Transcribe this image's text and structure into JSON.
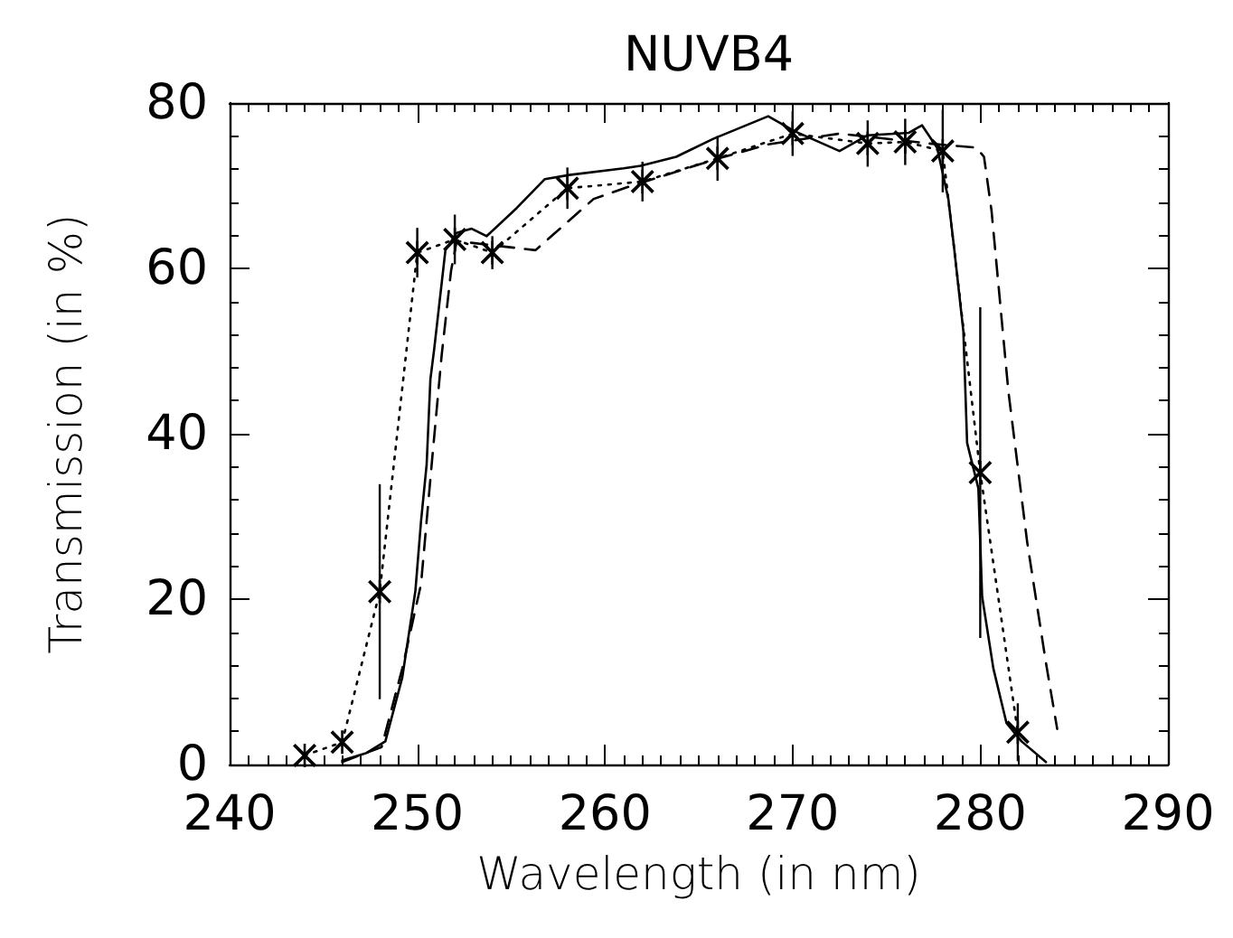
{
  "chart_data": {
    "type": "line",
    "title": "NUVB4",
    "xlabel": "Wavelength (in nm)",
    "ylabel": "Transmission (in %)",
    "xlim": [
      240,
      290
    ],
    "xticks": [
      240,
      250,
      260,
      270,
      280,
      290
    ],
    "ylim": [
      0,
      80
    ],
    "yticks": [
      0,
      20,
      40,
      60,
      80
    ],
    "grid": false,
    "series": [
      {
        "color": "#000000",
        "line_style": "solid",
        "marker": "none",
        "x": [
          246,
          247.3,
          248.3,
          249.2,
          249.9,
          250.2,
          250.5,
          250.7,
          250.9,
          251.5,
          252.1,
          252.9,
          253.7,
          255.3,
          256.8,
          258.1,
          261,
          261.9,
          263.8,
          265.8,
          268.7,
          270.1,
          272.5,
          274,
          276.2,
          276.9,
          277.7,
          278.3,
          278.6,
          279.1,
          279.3,
          279.9,
          280.1,
          280.7,
          281.4,
          282.2,
          283.5
        ],
        "values": [
          0.5,
          1.4,
          2.8,
          10.5,
          21,
          29.4,
          36.3,
          46.6,
          50.2,
          62.2,
          64.3,
          64.8,
          63.9,
          67.3,
          70.8,
          71.3,
          72.1,
          72.4,
          73.5,
          75.7,
          78.4,
          76.6,
          74.2,
          76.1,
          76.4,
          77.3,
          74.6,
          68.4,
          62.6,
          52.4,
          38.9,
          33.4,
          20.3,
          11.6,
          5,
          2.8,
          0.3
        ]
      },
      {
        "color": "#000000",
        "line_style": "dashed",
        "marker": "none",
        "x": [
          246,
          248.1,
          249.2,
          250.2,
          250.8,
          251.3,
          251.8,
          252.1,
          254,
          256.3,
          259.4,
          261.3,
          265.9,
          268.7,
          272.5,
          277.3,
          279.8,
          280.2,
          280.6,
          281.5,
          282.5,
          283.5,
          284.1
        ],
        "values": [
          0.3,
          2.1,
          11.6,
          21.8,
          37.1,
          49.5,
          59.7,
          63.3,
          62.8,
          62.2,
          68.4,
          69.9,
          73.2,
          75,
          76.3,
          75.1,
          74.6,
          73.5,
          67,
          45.1,
          26.9,
          12.3,
          4.3
        ]
      },
      {
        "color": "#000000",
        "line_style": "dotted",
        "marker": "cross",
        "x": [
          244,
          246,
          248,
          250,
          252,
          254,
          258,
          262,
          266,
          270,
          274,
          276,
          278,
          280,
          282
        ],
        "values": [
          1.1,
          2.7,
          20.9,
          61.9,
          63.5,
          61.9,
          69.7,
          70.5,
          73.3,
          76.3,
          75.1,
          75.3,
          74.2,
          35.3,
          3.9
        ],
        "errors": [
          null,
          null,
          13,
          3,
          3,
          2,
          2.5,
          2.4,
          2.7,
          2.7,
          2.8,
          2.8,
          5,
          20,
          3.5
        ]
      }
    ]
  }
}
